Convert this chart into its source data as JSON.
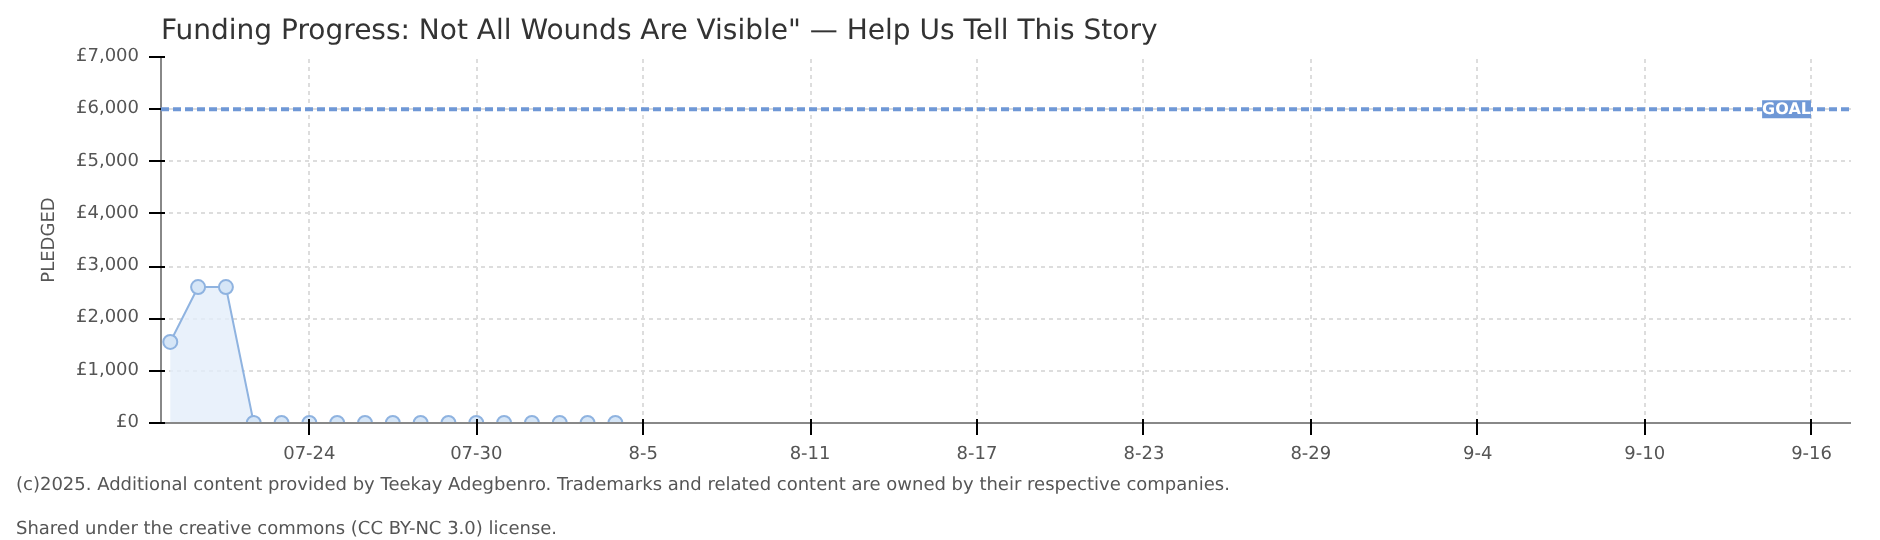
{
  "chart_data": {
    "type": "area",
    "title": "Funding Progress: Not All Wounds Are Visible\" — Help Us Tell This Story",
    "ylabel": "PLEDGED",
    "x": [
      "2025-07-19",
      "2025-07-20",
      "2025-07-21",
      "2025-07-22",
      "2025-07-23",
      "2025-07-24",
      "2025-07-25",
      "2025-07-26",
      "2025-07-27",
      "2025-07-28",
      "2025-07-29",
      "2025-07-30",
      "2025-07-31",
      "2025-08-01",
      "2025-08-02",
      "2025-08-03",
      "2025-08-04"
    ],
    "series": [
      {
        "color": "#8fb3e0",
        "values": [
          1550,
          2600,
          2600,
          0,
          0,
          0,
          0,
          0,
          0,
          0,
          0,
          0,
          0,
          0,
          0,
          0,
          0
        ]
      }
    ],
    "marker": "circle",
    "xlim": [
      "2025-07-18T16:00",
      "2025-09-17T10:00"
    ],
    "xticks": [
      {
        "value": "2025-07-24",
        "label": "07-24"
      },
      {
        "value": "2025-07-30",
        "label": "07-30"
      },
      {
        "value": "2025-08-05",
        "label": "8-5"
      },
      {
        "value": "2025-08-11",
        "label": "8-11"
      },
      {
        "value": "2025-08-17",
        "label": "8-17"
      },
      {
        "value": "2025-08-23",
        "label": "8-23"
      },
      {
        "value": "2025-08-29",
        "label": "8-29"
      },
      {
        "value": "2025-09-04",
        "label": "9-4"
      },
      {
        "value": "2025-09-10",
        "label": "9-10"
      },
      {
        "value": "2025-09-16",
        "label": "9-16"
      }
    ],
    "ylim": [
      0,
      7000
    ],
    "yticks": [
      {
        "value": 0,
        "label": "£0"
      },
      {
        "value": 1000,
        "label": "£1,000"
      },
      {
        "value": 2000,
        "label": "£2,000"
      },
      {
        "value": 3000,
        "label": "£3,000"
      },
      {
        "value": 4000,
        "label": "£4,000"
      },
      {
        "value": 5000,
        "label": "£5,000"
      },
      {
        "value": 6000,
        "label": "£6,000"
      },
      {
        "value": 7000,
        "label": "£7,000"
      }
    ],
    "ref_lines": [
      {
        "axis": "y",
        "value": 6000,
        "label": "GOAL",
        "color": "#6f98d6",
        "line_style": "dashed"
      }
    ],
    "grid": true,
    "annotations": [
      "(c)2025. Additional content provided by Teekay Adegbenro. Trademarks and related content are owned by their respective companies.",
      "Shared under the creative commons (CC BY-NC 3.0) license."
    ]
  }
}
